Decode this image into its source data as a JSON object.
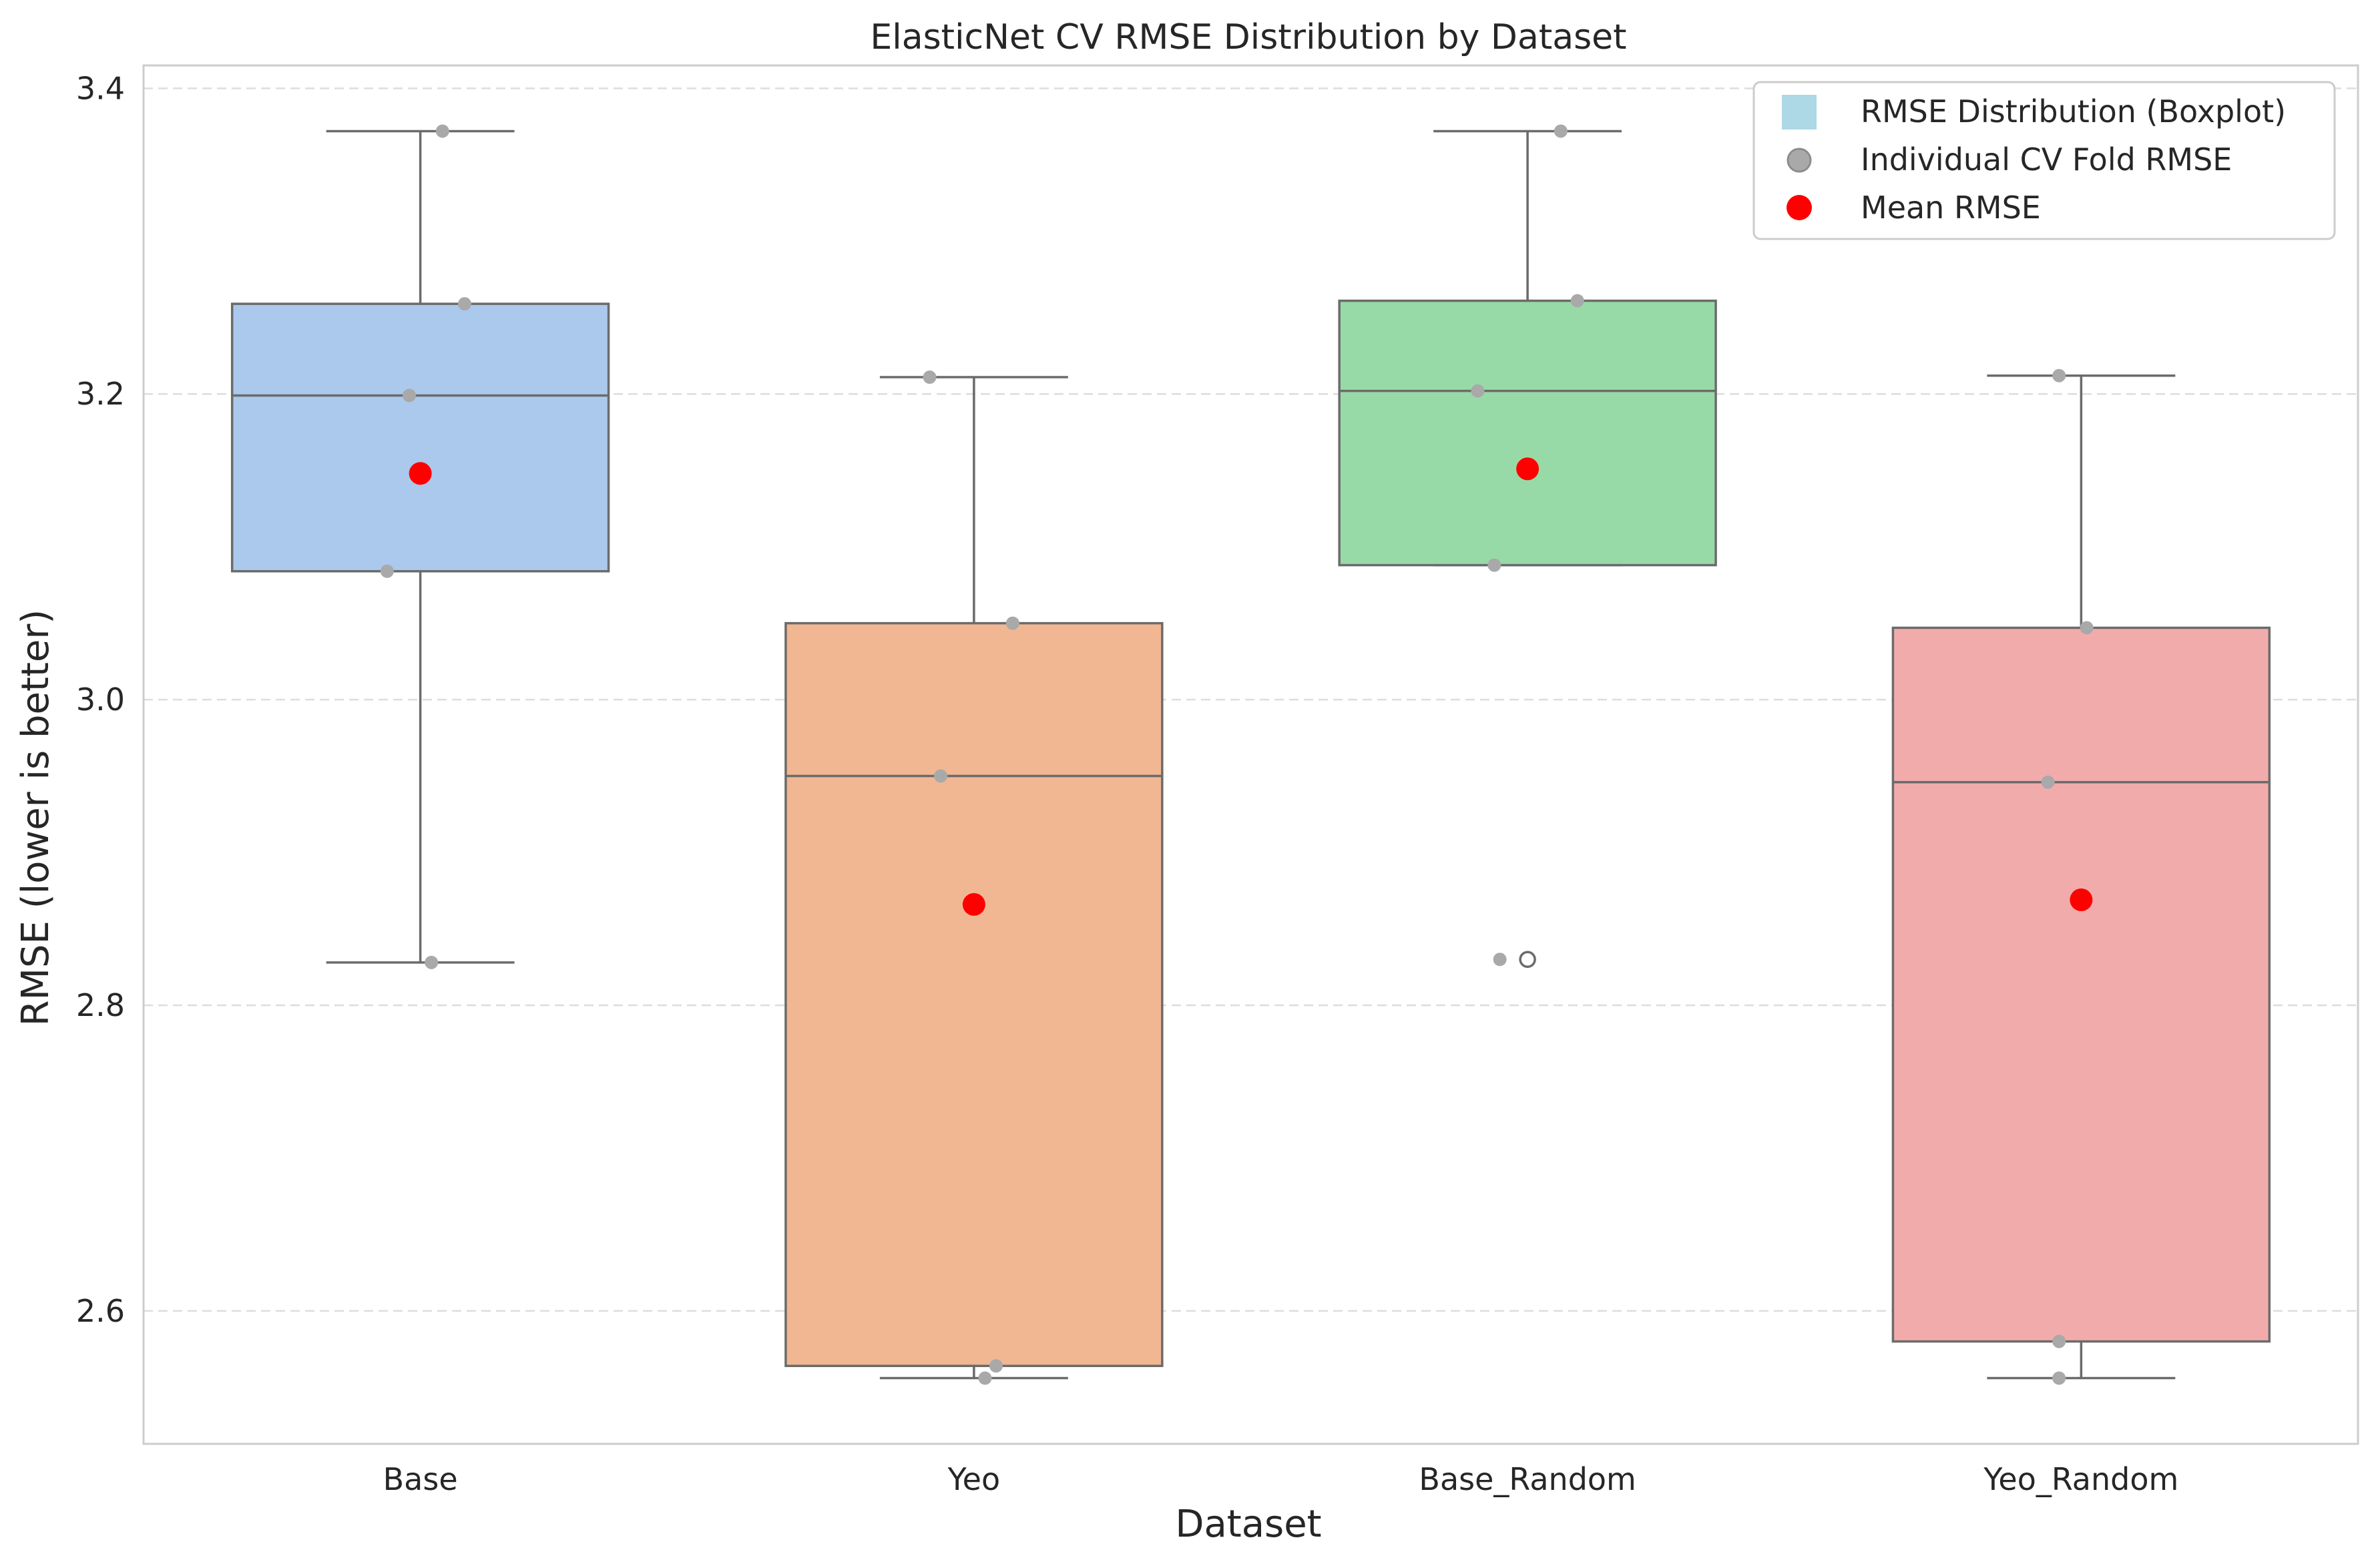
{
  "chart_data": {
    "type": "box",
    "title": "ElasticNet CV RMSE Distribution by Dataset",
    "xlabel": "Dataset",
    "ylabel": "RMSE (lower is better)",
    "ylim": [
      2.513,
      3.415
    ],
    "yticks": [
      2.6,
      2.8,
      3.0,
      3.2,
      3.4
    ],
    "ytick_labels": [
      "2.6",
      "2.8",
      "3.0",
      "3.2",
      "3.4"
    ],
    "grid": "y",
    "legend_position": "top-right",
    "legend": [
      {
        "label": "RMSE Distribution (Boxplot)",
        "marker": "square",
        "color": "#add8e6"
      },
      {
        "label": "Individual CV Fold RMSE",
        "marker": "circle",
        "color": "#a9a9a9"
      },
      {
        "label": "Mean RMSE",
        "marker": "circle",
        "color": "#ff0000"
      }
    ],
    "categories": [
      "Base",
      "Yeo",
      "Base_Random",
      "Yeo_Random"
    ],
    "boxes": [
      {
        "category": "Base",
        "color": "#abc9ec",
        "whisker_low": 2.828,
        "q1": 3.084,
        "median": 3.199,
        "q3": 3.259,
        "whisker_high": 3.372,
        "mean": 3.148,
        "outliers": []
      },
      {
        "category": "Yeo",
        "color": "#f1b793",
        "whisker_low": 2.556,
        "q1": 2.564,
        "median": 2.95,
        "q3": 3.05,
        "whisker_high": 3.211,
        "mean": 2.866,
        "outliers": []
      },
      {
        "category": "Base_Random",
        "color": "#98daa7",
        "whisker_low": 3.088,
        "q1": 3.088,
        "median": 3.202,
        "q3": 3.261,
        "whisker_high": 3.372,
        "mean": 3.151,
        "outliers": [
          2.83
        ]
      },
      {
        "category": "Yeo_Random",
        "color": "#f2abab",
        "whisker_low": 2.556,
        "q1": 2.58,
        "median": 2.946,
        "q3": 3.047,
        "whisker_high": 3.212,
        "mean": 2.869,
        "outliers": []
      }
    ],
    "points": [
      {
        "category": "Base",
        "values": [
          2.828,
          3.084,
          3.199,
          3.259,
          3.372
        ],
        "jitter": [
          0.02,
          -0.06,
          -0.02,
          0.08,
          0.04
        ]
      },
      {
        "category": "Yeo",
        "values": [
          2.556,
          2.564,
          2.95,
          3.05,
          3.211
        ],
        "jitter": [
          0.02,
          0.04,
          -0.06,
          0.07,
          -0.08
        ]
      },
      {
        "category": "Base_Random",
        "values": [
          2.83,
          3.088,
          3.202,
          3.261,
          3.372
        ],
        "jitter": [
          -0.05,
          -0.06,
          -0.09,
          0.09,
          0.06
        ]
      },
      {
        "category": "Yeo_Random",
        "values": [
          2.556,
          2.58,
          2.946,
          3.047,
          3.212
        ],
        "jitter": [
          -0.04,
          -0.04,
          -0.06,
          0.01,
          -0.04
        ]
      }
    ],
    "colors": {
      "point": "#a9a9a9",
      "mean": "#ff0000",
      "box_edge": "#6b6b6b",
      "grid": "#dddddd",
      "frame": "#cccccc"
    }
  }
}
